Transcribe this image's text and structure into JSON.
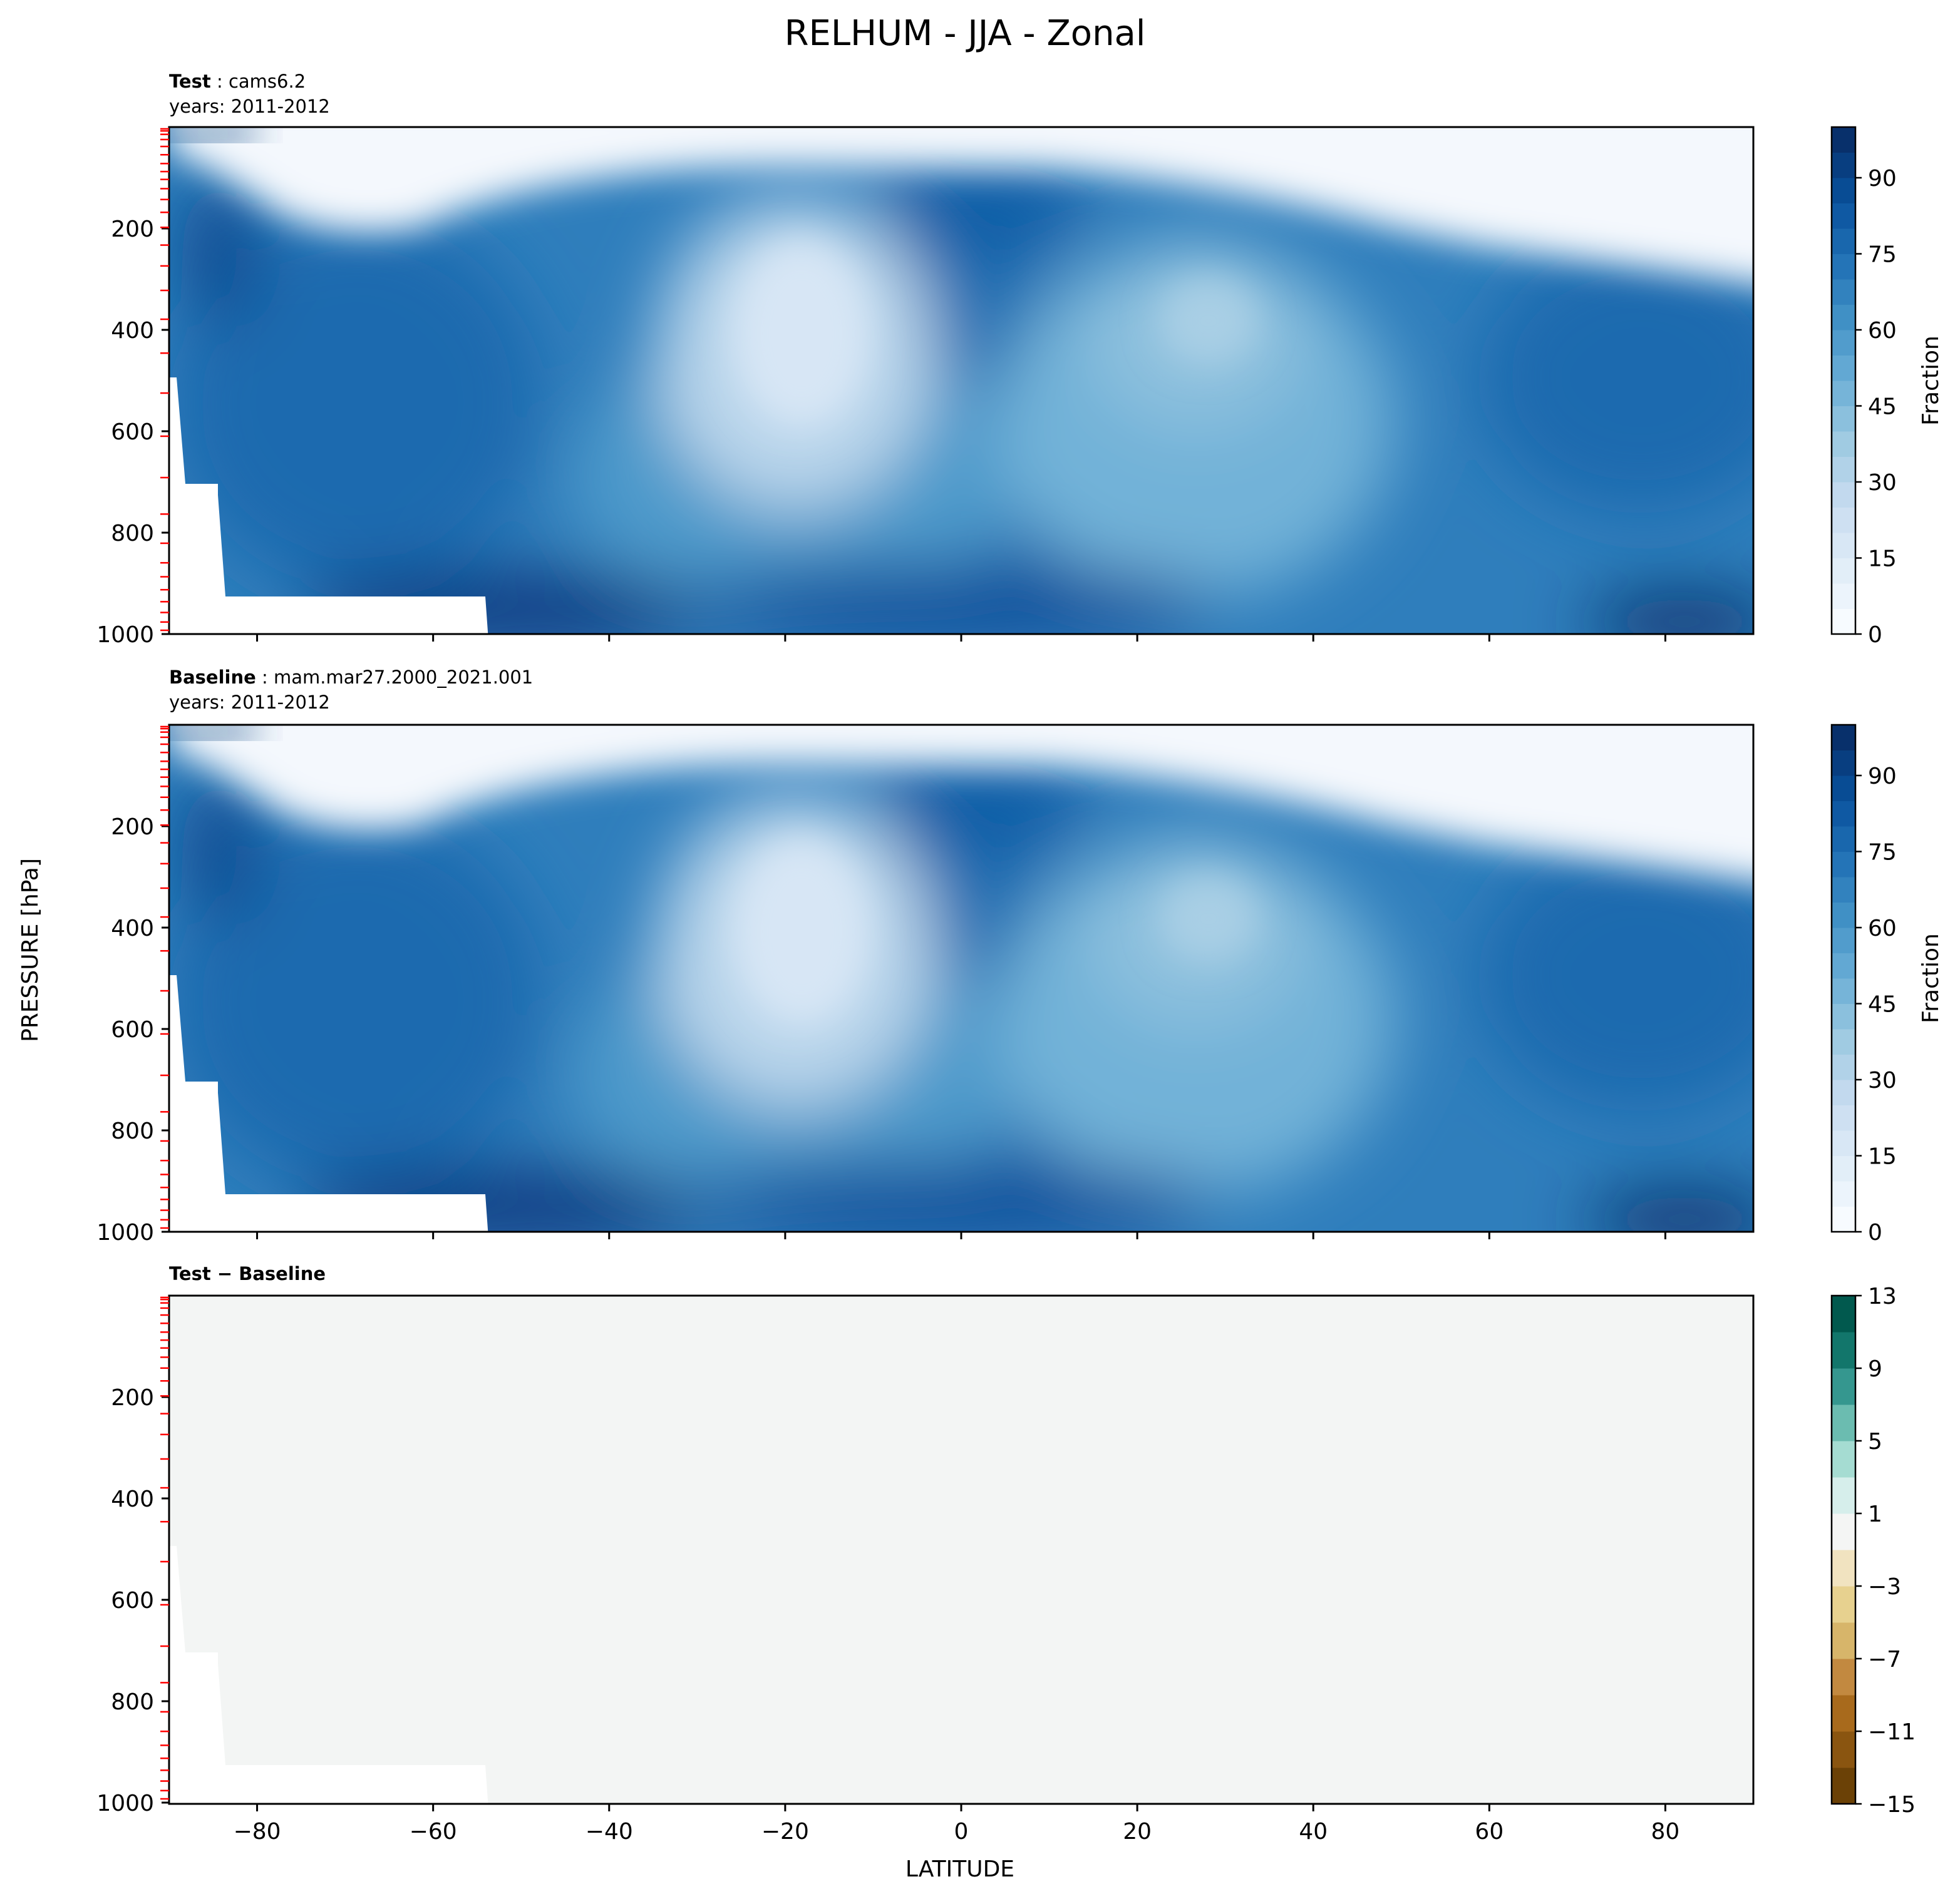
{
  "figure": {
    "title": "RELHUM - JJA - Zonal",
    "ylabel": "PRESSURE [hPa]",
    "xlabel": "LATITUDE"
  },
  "chart_data": [
    {
      "type": "heatmap",
      "panel": "test",
      "label_bold": "Test",
      "label_rest": "cams6.2",
      "subtitle": "years: 2011-2012",
      "x_range": [
        -90,
        90
      ],
      "y_range": [
        1000,
        0
      ],
      "x_ticks": [
        -80,
        -60,
        -40,
        -20,
        0,
        20,
        40,
        60,
        80
      ],
      "y_ticks": [
        200,
        400,
        600,
        800,
        1000
      ],
      "colorbar": {
        "label": "Fraction",
        "colormap": "Blues",
        "range": [
          0,
          100
        ],
        "ticks": [
          0,
          15,
          30,
          45,
          60,
          75,
          90
        ],
        "levels": 20
      },
      "features": [
        {
          "lat": -16,
          "p": 420,
          "value": 15,
          "desc": "subtropical dry minimum (SH)"
        },
        {
          "lat": 27,
          "p": 390,
          "value": 40,
          "desc": "subtropical dry region (NH)"
        },
        {
          "lat": 8,
          "p": 160,
          "value": 80,
          "desc": "tropical upper moist maximum"
        },
        {
          "lat": -88,
          "p": 40,
          "value": 100,
          "desc": "polar upper maximum"
        },
        {
          "lat": -62,
          "p": 920,
          "value": 95,
          "desc": "SH boundary layer maximum"
        },
        {
          "lat": 85,
          "p": 980,
          "value": 95,
          "desc": "Arctic surface maximum"
        }
      ]
    },
    {
      "type": "heatmap",
      "panel": "baseline",
      "label_bold": "Baseline",
      "label_rest": "mam.mar27.2000_2021.001",
      "subtitle": "years: 2011-2012",
      "x_range": [
        -90,
        90
      ],
      "y_range": [
        1000,
        0
      ],
      "x_ticks": [
        -80,
        -60,
        -40,
        -20,
        0,
        20,
        40,
        60,
        80
      ],
      "y_ticks": [
        200,
        400,
        600,
        800,
        1000
      ],
      "colorbar": {
        "label": "Fraction",
        "colormap": "Blues",
        "range": [
          0,
          100
        ],
        "ticks": [
          0,
          15,
          30,
          45,
          60,
          75,
          90
        ],
        "levels": 20
      }
    },
    {
      "type": "heatmap",
      "panel": "difference",
      "label_bold": "Test − Baseline",
      "x_range": [
        -90,
        90
      ],
      "y_range": [
        1000,
        0
      ],
      "x_ticks": [
        -80,
        -60,
        -40,
        -20,
        0,
        20,
        40,
        60,
        80
      ],
      "y_ticks": [
        200,
        400,
        600,
        800,
        1000
      ],
      "uniform_value": 0,
      "colorbar": {
        "colormap": "BrBG",
        "range": [
          -15,
          13
        ],
        "ticks": [
          -15,
          -11,
          -7,
          -3,
          1,
          5,
          9,
          13
        ],
        "bounds": [
          -15,
          -13,
          -11,
          -9,
          -7,
          -5,
          -3,
          -1,
          1,
          3,
          5,
          7,
          9,
          11,
          13
        ]
      }
    }
  ],
  "colors": {
    "blues": [
      "#f7fbff",
      "#deebf7",
      "#c6dbef",
      "#9ecae1",
      "#6baed6",
      "#4292c6",
      "#2171b5",
      "#08519c",
      "#08306b"
    ],
    "diff_colors": [
      "#6b4106",
      "#8a5510",
      "#a86a1c",
      "#c28940",
      "#d7b56a",
      "#e7d18f",
      "#f1e3c0",
      "#f4f5f4",
      "#d6eeeb",
      "#a5dcd2",
      "#6bbcb0",
      "#35978f",
      "#12766b",
      "#01594e"
    ],
    "diff_fill": "#f3f5f4",
    "marker_red": "#ff0000"
  },
  "sigma_levels_hpa": [
    3.6,
    7.6,
    14.4,
    24.6,
    38.3,
    54.6,
    72.0,
    87.8,
    103.3,
    121.5,
    142.9,
    168.2,
    197.9,
    232.8,
    273.9,
    322.2,
    379.1,
    445.9,
    524.7,
    609.8,
    691.4,
    763.4,
    820.9,
    859.5,
    887.0,
    912.6,
    936.2,
    957.5,
    976.3,
    992.6
  ]
}
